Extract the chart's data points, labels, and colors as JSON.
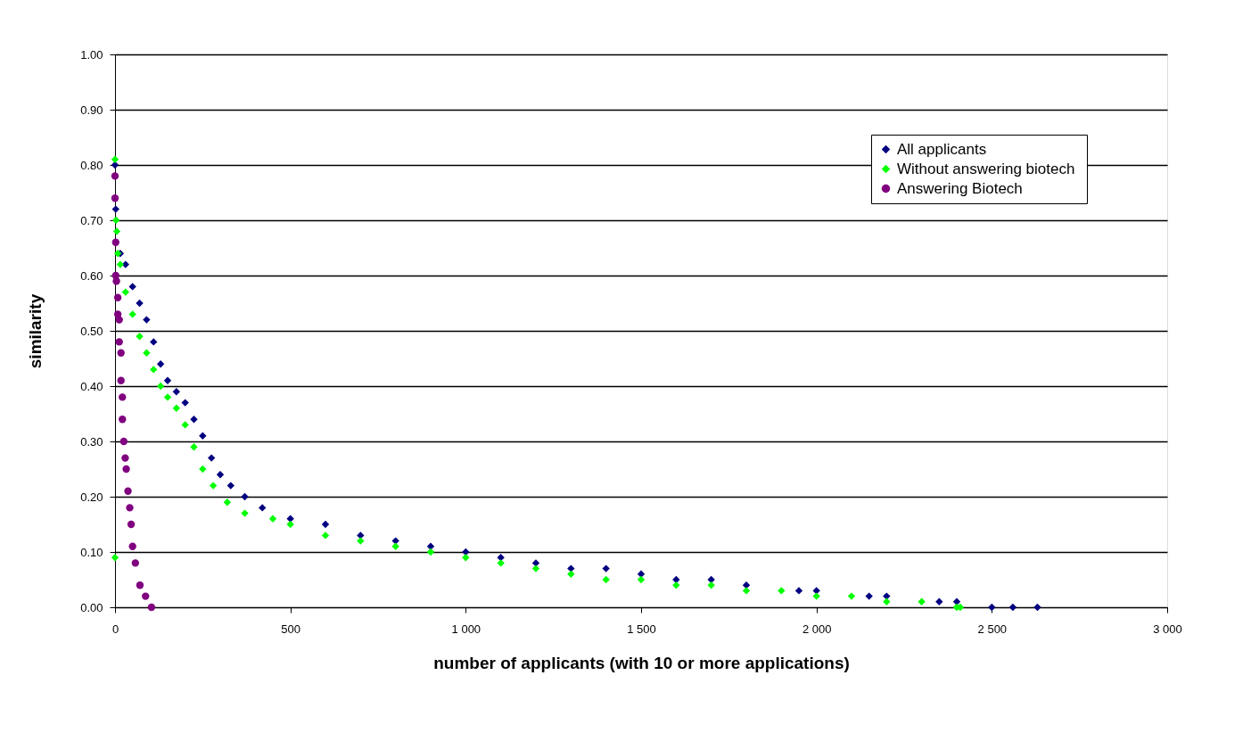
{
  "chart_data": {
    "type": "scatter",
    "xlabel": "number of applicants (with 10 or more applications)",
    "ylabel": "similarity",
    "xlim": [
      0,
      3000
    ],
    "ylim": [
      0,
      1
    ],
    "xticks": [
      0,
      500,
      {
        "value": 1000,
        "label": "1 000"
      },
      {
        "value": 1500,
        "label": "1 500"
      },
      {
        "value": 2000,
        "label": "2 000"
      },
      {
        "value": 2500,
        "label": "2 500"
      },
      {
        "value": 3000,
        "label": "3 000"
      }
    ],
    "yticks": [
      {
        "value": 0,
        "label": "0.00"
      },
      {
        "value": 0.1,
        "label": "0.10"
      },
      {
        "value": 0.2,
        "label": "0.20"
      },
      {
        "value": 0.3,
        "label": "0.30"
      },
      {
        "value": 0.4,
        "label": "0.40"
      },
      {
        "value": 0.5,
        "label": "0.50"
      },
      {
        "value": 0.6,
        "label": "0.60"
      },
      {
        "value": 0.7,
        "label": "0.70"
      },
      {
        "value": 0.8,
        "label": "0.80"
      },
      {
        "value": 0.9,
        "label": "0.90"
      },
      {
        "value": 1,
        "label": "1.00"
      }
    ],
    "grid": "y",
    "legend": "top right",
    "series": [
      {
        "name": "All applicants",
        "color": "#000080",
        "marker": "diamond",
        "x": [
          0,
          2,
          15,
          30,
          50,
          70,
          90,
          110,
          130,
          150,
          175,
          200,
          225,
          250,
          275,
          300,
          330,
          370,
          420,
          500,
          600,
          700,
          800,
          900,
          1000,
          1100,
          1200,
          1300,
          1400,
          1500,
          1600,
          1700,
          1800,
          1950,
          2000,
          2150,
          2200,
          2350,
          2400,
          2500,
          2560,
          2630
        ],
        "values": [
          0.8,
          0.72,
          0.64,
          0.62,
          0.58,
          0.55,
          0.52,
          0.48,
          0.44,
          0.41,
          0.39,
          0.37,
          0.34,
          0.31,
          0.27,
          0.24,
          0.22,
          0.2,
          0.18,
          0.16,
          0.15,
          0.13,
          0.12,
          0.11,
          0.1,
          0.09,
          0.08,
          0.07,
          0.07,
          0.06,
          0.05,
          0.05,
          0.04,
          0.03,
          0.03,
          0.02,
          0.02,
          0.01,
          0.01,
          0.0,
          0.0,
          0.0
        ]
      },
      {
        "name": "Without answering  biotech",
        "color": "#00ff00",
        "marker": "diamond",
        "x": [
          0,
          0,
          3,
          5,
          8,
          15,
          30,
          50,
          70,
          90,
          110,
          130,
          150,
          175,
          200,
          225,
          250,
          280,
          320,
          370,
          450,
          500,
          600,
          700,
          800,
          900,
          1000,
          1100,
          1200,
          1300,
          1400,
          1500,
          1600,
          1700,
          1800,
          1900,
          2000,
          2100,
          2200,
          2300,
          2400,
          2410
        ],
        "values": [
          0.81,
          0.09,
          0.7,
          0.68,
          0.64,
          0.62,
          0.57,
          0.53,
          0.49,
          0.46,
          0.43,
          0.4,
          0.38,
          0.36,
          0.33,
          0.29,
          0.25,
          0.22,
          0.19,
          0.17,
          0.16,
          0.15,
          0.13,
          0.12,
          0.11,
          0.1,
          0.09,
          0.08,
          0.07,
          0.06,
          0.05,
          0.05,
          0.04,
          0.04,
          0.03,
          0.03,
          0.02,
          0.02,
          0.01,
          0.01,
          0.0,
          0.0
        ]
      },
      {
        "name": "Answering Biotech",
        "color": "#800080",
        "marker": "circle",
        "x": [
          0,
          0,
          2,
          2,
          4,
          8,
          8,
          12,
          12,
          17,
          17,
          21,
          21,
          25,
          29,
          32,
          37,
          42,
          46,
          50,
          58,
          71,
          87,
          104
        ],
        "values": [
          0.78,
          0.74,
          0.66,
          0.6,
          0.59,
          0.56,
          0.53,
          0.52,
          0.48,
          0.46,
          0.41,
          0.38,
          0.34,
          0.3,
          0.27,
          0.25,
          0.21,
          0.18,
          0.15,
          0.11,
          0.08,
          0.04,
          0.02,
          0.0
        ]
      }
    ]
  }
}
